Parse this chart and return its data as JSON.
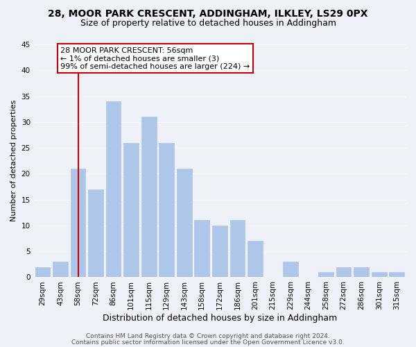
{
  "title": "28, MOOR PARK CRESCENT, ADDINGHAM, ILKLEY, LS29 0PX",
  "subtitle": "Size of property relative to detached houses in Addingham",
  "xlabel": "Distribution of detached houses by size in Addingham",
  "ylabel": "Number of detached properties",
  "bar_labels": [
    "29sqm",
    "43sqm",
    "58sqm",
    "72sqm",
    "86sqm",
    "101sqm",
    "115sqm",
    "129sqm",
    "143sqm",
    "158sqm",
    "172sqm",
    "186sqm",
    "201sqm",
    "215sqm",
    "229sqm",
    "244sqm",
    "258sqm",
    "272sqm",
    "286sqm",
    "301sqm",
    "315sqm"
  ],
  "bar_values": [
    2,
    3,
    21,
    17,
    34,
    26,
    31,
    26,
    21,
    11,
    10,
    11,
    7,
    0,
    3,
    0,
    1,
    2,
    2,
    1,
    1
  ],
  "bar_color": "#aec6e8",
  "bar_edge_color": "#aec6e8",
  "vline_x_index": 2,
  "vline_color": "#cc0000",
  "ylim": [
    0,
    45
  ],
  "yticks": [
    0,
    5,
    10,
    15,
    20,
    25,
    30,
    35,
    40,
    45
  ],
  "annotation_title": "28 MOOR PARK CRESCENT: 56sqm",
  "annotation_line1": "← 1% of detached houses are smaller (3)",
  "annotation_line2": "99% of semi-detached houses are larger (224) →",
  "annotation_box_color": "#ffffff",
  "annotation_box_edge": "#cc0000",
  "footer1": "Contains HM Land Registry data © Crown copyright and database right 2024.",
  "footer2": "Contains public sector information licensed under the Open Government Licence v3.0.",
  "background_color": "#eef2f8",
  "grid_color": "#ffffff",
  "title_fontsize": 10,
  "subtitle_fontsize": 9,
  "xlabel_fontsize": 9,
  "ylabel_fontsize": 8,
  "tick_fontsize": 7.5,
  "annotation_fontsize": 8,
  "footer_fontsize": 6.5
}
